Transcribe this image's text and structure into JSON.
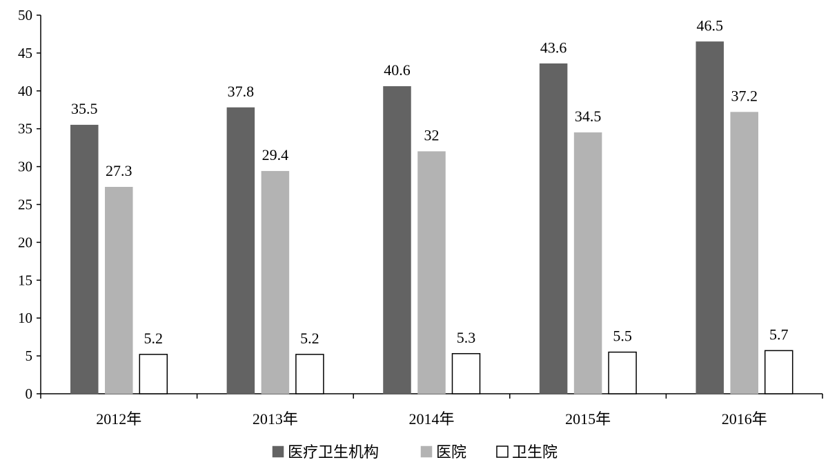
{
  "chart_data": {
    "type": "bar",
    "categories": [
      "2012年",
      "2013年",
      "2014年",
      "2015年",
      "2016年"
    ],
    "series": [
      {
        "name": "医疗卫生机构",
        "values": [
          35.5,
          37.8,
          40.6,
          43.6,
          46.5
        ],
        "color": "#636363",
        "stroke": "#636363"
      },
      {
        "name": "医院",
        "values": [
          27.3,
          29.4,
          32,
          34.5,
          37.2
        ],
        "color": "#b3b3b3",
        "stroke": "#b3b3b3"
      },
      {
        "name": "卫生院",
        "values": [
          5.2,
          5.2,
          5.3,
          5.5,
          5.7
        ],
        "color": "#ffffff",
        "stroke": "#000000"
      }
    ],
    "value_labels": [
      [
        "35.5",
        "37.8",
        "40.6",
        "43.6",
        "46.5"
      ],
      [
        "27.3",
        "29.4",
        "32",
        "34.5",
        "37.2"
      ],
      [
        "5.2",
        "5.2",
        "5.3",
        "5.5",
        "5.7"
      ]
    ],
    "yticks": [
      "0",
      "5",
      "10",
      "15",
      "20",
      "25",
      "30",
      "35",
      "40",
      "45",
      "50"
    ],
    "ylim": [
      0,
      50
    ],
    "grid": false,
    "legend_position": "bottom-center"
  }
}
